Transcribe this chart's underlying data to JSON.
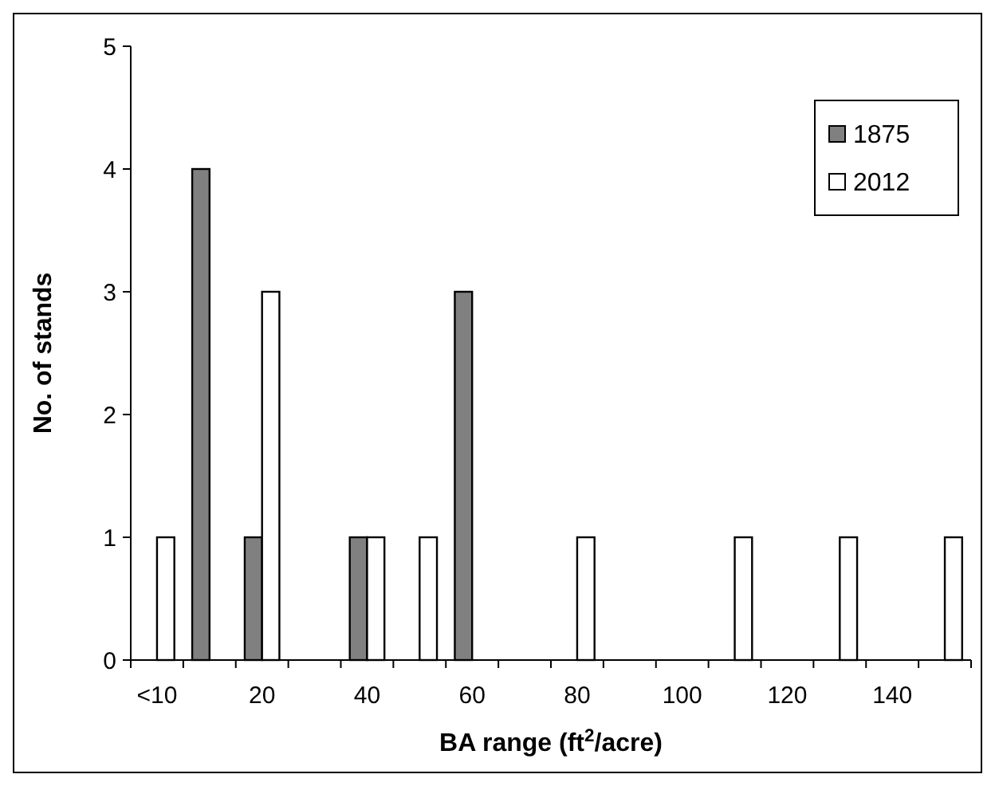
{
  "chart_data": {
    "type": "bar",
    "xlabel": "BA range (ft$^{2}$/acre)",
    "ylabel": "No. of stands",
    "categories": [
      "<10",
      null,
      "20",
      null,
      "40",
      null,
      "60",
      null,
      "80",
      null,
      "100",
      null,
      "120",
      null,
      "140",
      null
    ],
    "series": [
      {
        "name": "1875",
        "color": "#808080",
        "values": [
          0,
          4,
          1,
          0,
          1,
          0,
          3,
          0,
          0,
          0,
          0,
          0,
          0,
          0,
          0,
          0
        ]
      },
      {
        "name": "2012",
        "color": "#ffffff",
        "values": [
          1,
          0,
          3,
          0,
          1,
          1,
          0,
          0,
          1,
          0,
          0,
          1,
          0,
          1,
          0,
          1
        ]
      }
    ],
    "ylim": [
      0,
      5
    ],
    "yticks": [
      0,
      1,
      2,
      3,
      4,
      5
    ],
    "legend": "top right"
  }
}
